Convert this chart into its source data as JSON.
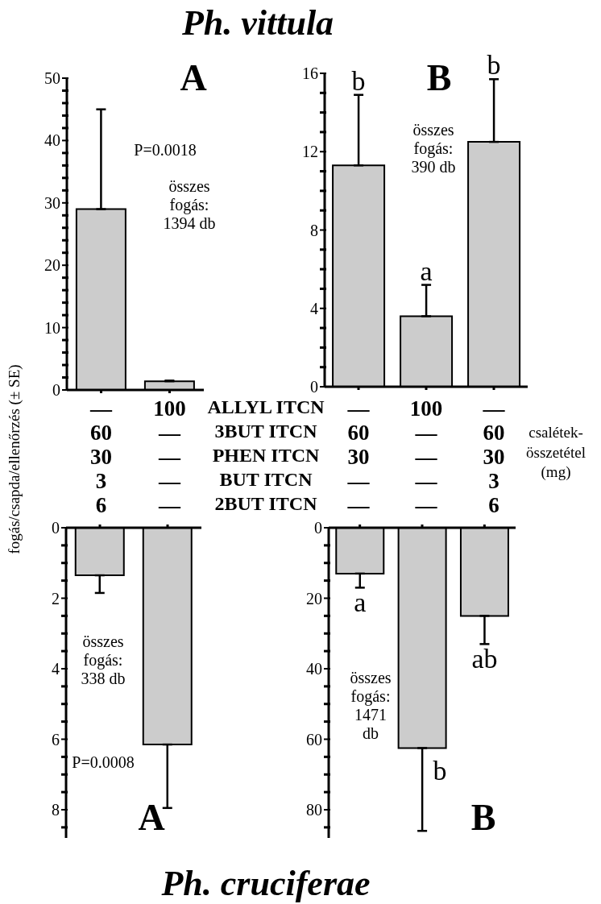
{
  "chart_data": [
    {
      "type": "bar",
      "title": "A",
      "ylabel": "fogás/csapda/ellenőrzés (± SE)",
      "categories": [
        null,
        null
      ],
      "values": [
        29,
        1.4
      ],
      "errors": [
        [
          29,
          45
        ],
        [
          1.4,
          1.5
        ]
      ],
      "color": "#cccccc",
      "ylim": [
        0,
        50
      ],
      "yticks": [
        0,
        {
          "value": 2,
          "label": null
        },
        {
          "value": 4,
          "label": null
        },
        {
          "value": 6,
          "label": null
        },
        {
          "value": 8,
          "label": null
        },
        10,
        {
          "value": 12,
          "label": null
        },
        {
          "value": 14,
          "label": null
        },
        {
          "value": 16,
          "label": null
        },
        {
          "value": 18,
          "label": null
        },
        20,
        {
          "value": 22,
          "label": null
        },
        {
          "value": 24,
          "label": null
        },
        {
          "value": 26,
          "label": null
        },
        {
          "value": 28,
          "label": null
        },
        30,
        {
          "value": 32,
          "label": null
        },
        {
          "value": 34,
          "label": null
        },
        {
          "value": 36,
          "label": null
        },
        {
          "value": 38,
          "label": null
        },
        40,
        {
          "value": 42,
          "label": null
        },
        {
          "value": 44,
          "label": null
        },
        {
          "value": 46,
          "label": null
        },
        {
          "value": 48,
          "label": null
        },
        50
      ],
      "annotations": [
        "Ph. vittula",
        "P=0.0018",
        "összes\nfogás:\n1394 db"
      ]
    },
    {
      "type": "bar",
      "title": "B",
      "categories": [
        null,
        null,
        null
      ],
      "values": [
        11.3,
        3.6,
        12.5
      ],
      "errors": [
        [
          11.3,
          14.9
        ],
        [
          3.6,
          5.2
        ],
        [
          12.5,
          15.7
        ]
      ],
      "value_labels": [
        "b",
        "a",
        "b"
      ],
      "color": "#cccccc",
      "ylim": [
        0,
        16
      ],
      "yticks": [
        0,
        {
          "value": 1,
          "label": null
        },
        {
          "value": 2,
          "label": null
        },
        {
          "value": 3,
          "label": null
        },
        4,
        {
          "value": 5,
          "label": null
        },
        {
          "value": 6,
          "label": null
        },
        {
          "value": 7,
          "label": null
        },
        8,
        {
          "value": 9,
          "label": null
        },
        {
          "value": 10,
          "label": null
        },
        {
          "value": 11,
          "label": null
        },
        12,
        {
          "value": 13,
          "label": null
        },
        {
          "value": 14,
          "label": null
        },
        {
          "value": 15,
          "label": null
        },
        16
      ],
      "annotations": [
        "összes\nfogás:\n390 db"
      ]
    },
    {
      "type": "bar",
      "title": "A",
      "categories": [
        null,
        null
      ],
      "values": [
        1.35,
        6.15
      ],
      "errors": [
        [
          1.35,
          1.85
        ],
        [
          6.15,
          7.95
        ]
      ],
      "color": "#cccccc",
      "ylim": [
        8.8,
        0
      ],
      "yticks": [
        0,
        {
          "value": 0.5,
          "label": null
        },
        {
          "value": 1,
          "label": null
        },
        {
          "value": 1.5,
          "label": null
        },
        2,
        {
          "value": 2.5,
          "label": null
        },
        {
          "value": 3,
          "label": null
        },
        {
          "value": 3.5,
          "label": null
        },
        4,
        {
          "value": 4.5,
          "label": null
        },
        {
          "value": 5,
          "label": null
        },
        {
          "value": 5.5,
          "label": null
        },
        6,
        {
          "value": 6.5,
          "label": null
        },
        {
          "value": 7,
          "label": null
        },
        {
          "value": 7.5,
          "label": null
        },
        8,
        {
          "value": 8.5,
          "label": null
        }
      ],
      "annotations": [
        "Ph. cruciferae",
        "összes\nfogás:\n338 db",
        "P=0.0008"
      ]
    },
    {
      "type": "bar",
      "title": "B",
      "categories": [
        null,
        null,
        null
      ],
      "values": [
        13,
        62.5,
        25
      ],
      "errors": [
        [
          13,
          17
        ],
        [
          62.5,
          86
        ],
        [
          25,
          33
        ]
      ],
      "value_labels": [
        "a",
        "b",
        "ab"
      ],
      "color": "#cccccc",
      "ylim": [
        88,
        0
      ],
      "yticks": [
        0,
        {
          "value": 5,
          "label": null
        },
        {
          "value": 10,
          "label": null
        },
        {
          "value": 15,
          "label": null
        },
        20,
        {
          "value": 25,
          "label": null
        },
        {
          "value": 30,
          "label": null
        },
        {
          "value": 35,
          "label": null
        },
        40,
        {
          "value": 45,
          "label": null
        },
        {
          "value": 50,
          "label": null
        },
        {
          "value": 55,
          "label": null
        },
        60,
        {
          "value": 65,
          "label": null
        },
        {
          "value": 70,
          "label": null
        },
        {
          "value": 75,
          "label": null
        },
        80,
        {
          "value": 85,
          "label": null
        }
      ],
      "annotations": [
        "összes\nfogás:\n1471\ndb"
      ]
    },
    {
      "type": "other",
      "y_categories": [
        "ALLYL ITCN",
        "3BUT ITCN",
        "PHEN ITCN",
        "BUT ITCN",
        "2BUT ITCN"
      ],
      "cell_labels": [
        [
          "—",
          "100",
          "—",
          "100",
          "—"
        ],
        [
          "60",
          "—",
          "60",
          "—",
          "60"
        ],
        [
          "30",
          "—",
          "30",
          "—",
          "30"
        ],
        [
          "3",
          "—",
          "—",
          "—",
          "3"
        ],
        [
          "6",
          "—",
          "—",
          "—",
          "6"
        ]
      ],
      "annotations": [
        "csalétek-\nösszetétel\n(mg)"
      ]
    }
  ]
}
